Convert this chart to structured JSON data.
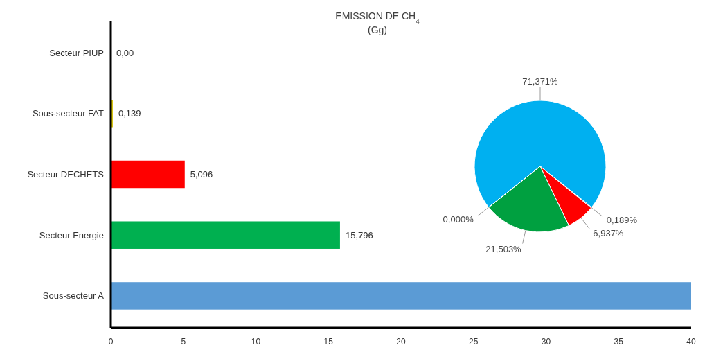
{
  "chart_data": [
    {
      "type": "bar",
      "title": "EMISSION DE CH$_{4}$",
      "subtitle": "(Gg)",
      "orientation": "horizontal",
      "categories": [
        "Secteur PIUP",
        "Sous-secteur FAT",
        "Secteur DECHETS",
        "Secteur Energie",
        "Sous-secteur A"
      ],
      "values": [
        0,
        0.139,
        5.096,
        15.796,
        40
      ],
      "colors": [
        "#ffc000",
        "#d4c000",
        "#ff0000",
        "#00b050",
        "#5b9bd5"
      ],
      "value_labels": [
        "0,00",
        "0,139",
        "5,096",
        "15,796",
        null
      ],
      "xlim": [
        0,
        40
      ],
      "xticks": [
        0,
        5,
        10,
        15,
        20,
        25,
        30,
        35,
        40
      ],
      "grid": false
    },
    {
      "type": "pie",
      "categories": [
        null,
        null,
        null,
        null,
        null
      ],
      "values": [
        71.371,
        0.189,
        6.937,
        21.503,
        0.0
      ],
      "colors": [
        "#00b0f0",
        "#1f4e79",
        "#ff0000",
        "#00a040",
        "#000000"
      ],
      "value_labels": [
        "71,371%",
        "0,189%",
        "6,937%",
        "21,503%",
        "0,000%"
      ]
    }
  ]
}
